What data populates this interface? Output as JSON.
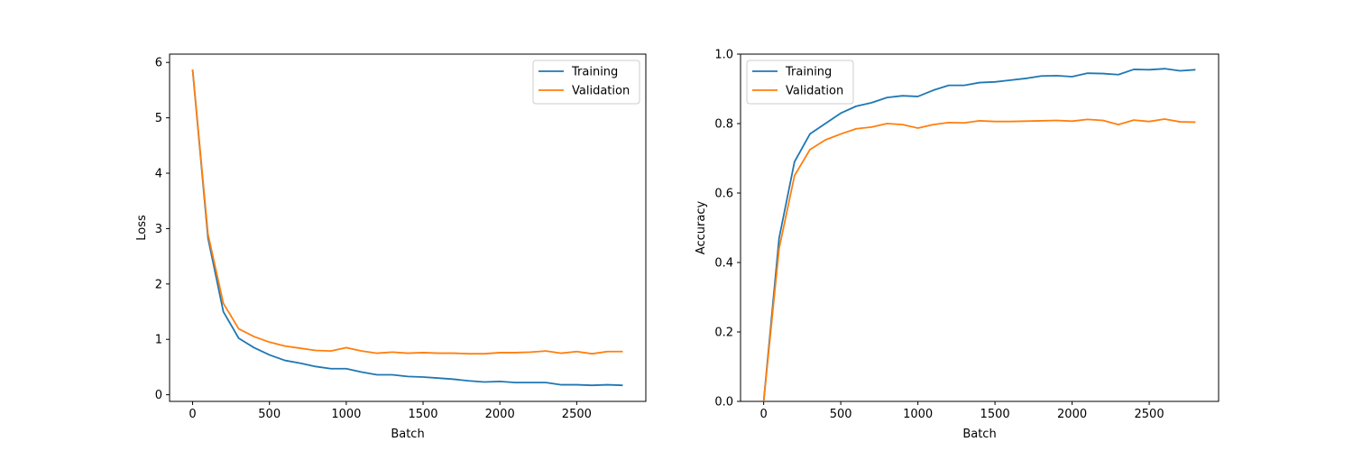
{
  "chart_data": [
    {
      "type": "line",
      "xlabel": "Batch",
      "ylabel": "Loss",
      "xlim": [
        -150,
        2950
      ],
      "ylim": [
        -0.12,
        6.15
      ],
      "xticks": [
        0,
        500,
        1000,
        1500,
        2000,
        2500
      ],
      "yticks": [
        0,
        1,
        2,
        3,
        4,
        5,
        6
      ],
      "legend_position": "upper right",
      "grid": false,
      "x": [
        0,
        100,
        200,
        300,
        400,
        500,
        600,
        700,
        800,
        900,
        1000,
        1100,
        1200,
        1300,
        1400,
        1500,
        1600,
        1700,
        1800,
        1900,
        2000,
        2100,
        2200,
        2300,
        2400,
        2500,
        2600,
        2700,
        2800
      ],
      "series": [
        {
          "name": "Training",
          "color": "#1f77b4",
          "values": [
            5.87,
            2.83,
            1.5,
            1.02,
            0.85,
            0.72,
            0.62,
            0.57,
            0.51,
            0.47,
            0.47,
            0.41,
            0.36,
            0.36,
            0.33,
            0.32,
            0.3,
            0.28,
            0.25,
            0.23,
            0.24,
            0.22,
            0.22,
            0.22,
            0.18,
            0.18,
            0.17,
            0.18,
            0.17
          ]
        },
        {
          "name": "Validation",
          "color": "#ff7f0e",
          "values": [
            5.87,
            2.9,
            1.65,
            1.19,
            1.05,
            0.95,
            0.88,
            0.84,
            0.8,
            0.79,
            0.85,
            0.79,
            0.75,
            0.77,
            0.75,
            0.76,
            0.75,
            0.75,
            0.74,
            0.74,
            0.76,
            0.76,
            0.77,
            0.79,
            0.75,
            0.78,
            0.74,
            0.78,
            0.78
          ]
        }
      ]
    },
    {
      "type": "line",
      "xlabel": "Batch",
      "ylabel": "Accuracy",
      "xlim": [
        -150,
        2950
      ],
      "ylim": [
        0.0,
        1.0
      ],
      "xticks": [
        0,
        500,
        1000,
        1500,
        2000,
        2500
      ],
      "yticks": [
        0.0,
        0.2,
        0.4,
        0.6,
        0.8,
        1.0
      ],
      "legend_position": "upper left",
      "grid": false,
      "x": [
        0,
        100,
        200,
        300,
        400,
        500,
        600,
        700,
        800,
        900,
        1000,
        1100,
        1200,
        1300,
        1400,
        1500,
        1600,
        1700,
        1800,
        1900,
        2000,
        2100,
        2200,
        2300,
        2400,
        2500,
        2600,
        2700,
        2800
      ],
      "series": [
        {
          "name": "Training",
          "color": "#1f77b4",
          "values": [
            0.0,
            0.47,
            0.69,
            0.77,
            0.8,
            0.83,
            0.85,
            0.86,
            0.875,
            0.88,
            0.878,
            0.896,
            0.91,
            0.91,
            0.918,
            0.92,
            0.925,
            0.93,
            0.937,
            0.938,
            0.935,
            0.945,
            0.944,
            0.941,
            0.956,
            0.955,
            0.958,
            0.952,
            0.955
          ]
        },
        {
          "name": "Validation",
          "color": "#ff7f0e",
          "values": [
            0.0,
            0.44,
            0.65,
            0.725,
            0.753,
            0.77,
            0.785,
            0.79,
            0.8,
            0.797,
            0.787,
            0.797,
            0.803,
            0.802,
            0.808,
            0.806,
            0.806,
            0.807,
            0.808,
            0.809,
            0.807,
            0.812,
            0.809,
            0.797,
            0.81,
            0.806,
            0.813,
            0.805,
            0.804
          ]
        }
      ]
    }
  ]
}
